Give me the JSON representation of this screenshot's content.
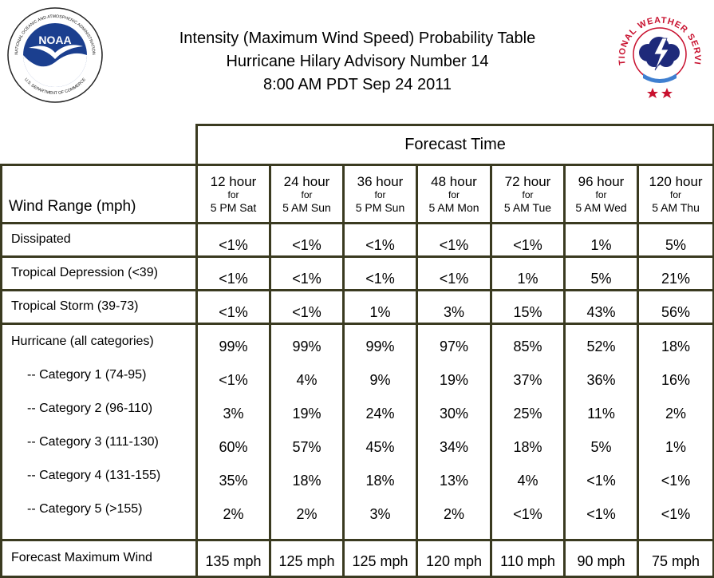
{
  "header": {
    "line1": "Intensity (Maximum Wind Speed) Probability Table",
    "line2": "Hurricane Hilary Advisory Number 14",
    "line3": "8:00 AM PDT Sep 24 2011"
  },
  "logos": {
    "noaa": {
      "text": "NOAA",
      "ring": "NATIONAL OCEANIC AND ATMOSPHERIC ADMINISTRATION · U.S. DEPARTMENT OF COMMERCE",
      "color": "#1b3f8f"
    },
    "nws": {
      "ring": "NATIONAL WEATHER SERVICE",
      "color": "#c8102e"
    }
  },
  "table": {
    "forecast_time_label": "Forecast Time",
    "wind_range_label": "Wind Range (mph)",
    "for_word": "for",
    "columns": [
      {
        "hour": "12 hour",
        "when": "5 PM Sat"
      },
      {
        "hour": "24 hour",
        "when": "5 AM Sun"
      },
      {
        "hour": "36 hour",
        "when": "5 PM Sun"
      },
      {
        "hour": "48 hour",
        "when": "5 AM Mon"
      },
      {
        "hour": "72 hour",
        "when": "5 AM Tue"
      },
      {
        "hour": "96 hour",
        "when": "5 AM Wed"
      },
      {
        "hour": "120 hour",
        "when": "5 AM Thu"
      }
    ],
    "rows": [
      {
        "label": "Dissipated",
        "values": [
          "<1%",
          "<1%",
          "<1%",
          "<1%",
          "<1%",
          "1%",
          "5%"
        ]
      },
      {
        "label": "Tropical Depression (<39)",
        "values": [
          "<1%",
          "<1%",
          "<1%",
          "<1%",
          "1%",
          "5%",
          "21%"
        ]
      },
      {
        "label": "Tropical Storm (39-73)",
        "values": [
          "<1%",
          "<1%",
          "1%",
          "3%",
          "15%",
          "43%",
          "56%"
        ]
      }
    ],
    "hurricane": {
      "label": "Hurricane (all categories)",
      "values": [
        "99%",
        "99%",
        "99%",
        "97%",
        "85%",
        "52%",
        "18%"
      ],
      "categories": [
        {
          "label": "-- Category 1 (74-95)",
          "values": [
            "<1%",
            "4%",
            "9%",
            "19%",
            "37%",
            "36%",
            "16%"
          ]
        },
        {
          "label": "-- Category 2 (96-110)",
          "values": [
            "3%",
            "19%",
            "24%",
            "30%",
            "25%",
            "11%",
            "2%"
          ]
        },
        {
          "label": "-- Category 3 (111-130)",
          "values": [
            "60%",
            "57%",
            "45%",
            "34%",
            "18%",
            "5%",
            "1%"
          ]
        },
        {
          "label": "-- Category 4 (131-155)",
          "values": [
            "35%",
            "18%",
            "18%",
            "13%",
            "4%",
            "<1%",
            "<1%"
          ]
        },
        {
          "label": "-- Category 5 (>155)",
          "values": [
            "2%",
            "2%",
            "3%",
            "2%",
            "<1%",
            "<1%",
            "<1%"
          ]
        }
      ]
    },
    "max_wind": {
      "label": "Forecast Maximum Wind",
      "values": [
        "135 mph",
        "125 mph",
        "125 mph",
        "120 mph",
        "110 mph",
        "90 mph",
        "75 mph"
      ]
    }
  }
}
